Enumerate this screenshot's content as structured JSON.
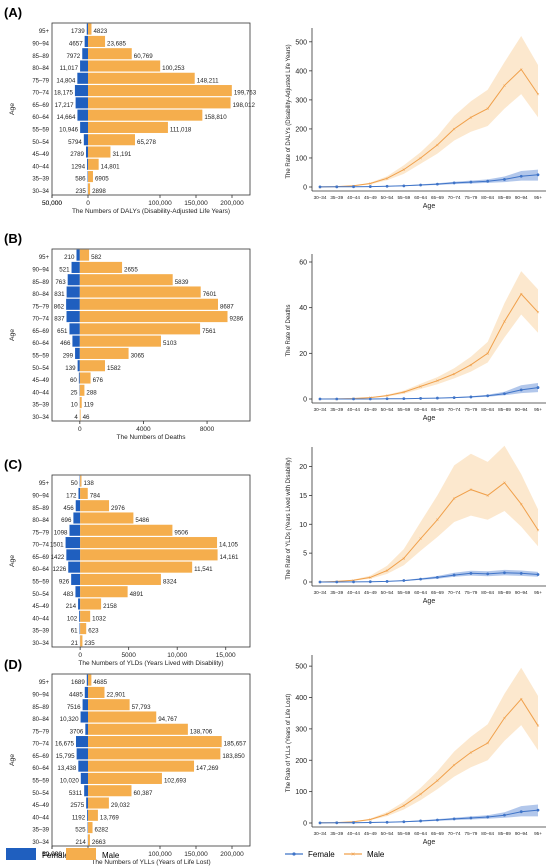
{
  "age_groups": [
    "95+",
    "90–94",
    "85–89",
    "80–84",
    "75–79",
    "70–74",
    "65–69",
    "60–64",
    "55–59",
    "50–54",
    "45–49",
    "40–44",
    "35–39",
    "30–34"
  ],
  "line_ticks": [
    "30–34",
    "35–39",
    "40–44",
    "45–49",
    "50–54",
    "55–59",
    "60–64",
    "65–69",
    "70–74",
    "75–79",
    "80–84",
    "85–89",
    "90–94",
    "95+"
  ],
  "colors": {
    "female": "#1f5fbf",
    "male": "#f5ae4d",
    "female_line": "#3f74c8",
    "male_line": "#f0a04b",
    "female_band": "#9fb9e6",
    "male_band": "#fbe0bd"
  },
  "legend": {
    "female_label": "Female",
    "male_label": "Male"
  },
  "chart_data": [
    {
      "type": "bar",
      "panel": "(A)",
      "xlabel": "The Numbers of DALYs (Disability-Adjusted Life Years)",
      "ylabel": "Age",
      "xticks": [
        "50,000",
        "0",
        "50,000",
        "100,000",
        "150,000",
        "200,000"
      ],
      "xlim": [
        -50000,
        225000
      ],
      "series": [
        {
          "name": "Female",
          "values": [
            1739,
            4657,
            7972,
            11017,
            14804,
            18175,
            17217,
            14664,
            10946,
            5794,
            2789,
            1294,
            586,
            235
          ],
          "labels": [
            "1739",
            "4657",
            "7972",
            "11,017",
            "14,804",
            "18,175",
            "17,217",
            "14,664",
            "10,946",
            "5794",
            "2789",
            "1294",
            "586",
            "235"
          ]
        },
        {
          "name": "Male",
          "values": [
            4823,
            23685,
            60769,
            100253,
            148211,
            199763,
            198012,
            158810,
            111018,
            65278,
            31191,
            14801,
            6905,
            2898
          ],
          "labels": [
            "4823",
            "23,685",
            "60,769",
            "100,253",
            "148,211",
            "199,763",
            "198,012",
            "158,810",
            "111,018",
            "65,278",
            "31,191",
            "14,801",
            "6905",
            "2898"
          ]
        }
      ]
    },
    {
      "type": "bar",
      "panel": "(B)",
      "xlabel": "The Numbers of Deaths",
      "ylabel": "Age",
      "xticks": [
        "0",
        "4000",
        "8000"
      ],
      "xlim": [
        -1750,
        10700
      ],
      "series": [
        {
          "name": "Female",
          "values": [
            210,
            521,
            763,
            831,
            862,
            837,
            651,
            466,
            299,
            139,
            60,
            25,
            10,
            4
          ],
          "labels": [
            "210",
            "521",
            "763",
            "831",
            "862",
            "837",
            "651",
            "466",
            "299",
            "139",
            "60",
            "25",
            "10",
            "4"
          ]
        },
        {
          "name": "Male",
          "values": [
            582,
            2655,
            5839,
            7601,
            8687,
            9286,
            7561,
            5103,
            3065,
            1582,
            676,
            288,
            119,
            46
          ],
          "labels": [
            "582",
            "2655",
            "5839",
            "7601",
            "8687",
            "9286",
            "7561",
            "5103",
            "3065",
            "1582",
            "676",
            "288",
            "119",
            "46"
          ]
        }
      ]
    },
    {
      "type": "bar",
      "panel": "(C)",
      "xlabel": "The Numbers of YLDs (Years Lived with Disability)",
      "ylabel": "Age",
      "xticks": [
        "0",
        "5000",
        "10,000",
        "15,000"
      ],
      "xlim": [
        -2900,
        17500
      ],
      "series": [
        {
          "name": "Female",
          "values": [
            50,
            172,
            456,
            696,
            1098,
            1501,
            1422,
            1226,
            926,
            483,
            214,
            102,
            61,
            21
          ],
          "labels": [
            "50",
            "172",
            "456",
            "696",
            "1098",
            "1501",
            "1422",
            "1226",
            "926",
            "483",
            "214",
            "102",
            "61",
            "21"
          ]
        },
        {
          "name": "Male",
          "values": [
            138,
            784,
            2976,
            5486,
            9506,
            14105,
            14161,
            11541,
            8324,
            4891,
            2158,
            1032,
            623,
            235
          ],
          "labels": [
            "138",
            "784",
            "2976",
            "5486",
            "9506",
            "14,105",
            "14,161",
            "11,541",
            "8324",
            "4891",
            "2158",
            "1032",
            "623",
            "235"
          ]
        }
      ]
    },
    {
      "type": "bar",
      "panel": "(D)",
      "xlabel": "The Numbers of YLLs (Years of Life Lost)",
      "ylabel": "Age",
      "xticks": [
        "50,000",
        "0",
        "50,000",
        "100,000",
        "150,000",
        "200,000"
      ],
      "xlim": [
        -50000,
        225000
      ],
      "series": [
        {
          "name": "Female",
          "values": [
            1689,
            4485,
            7516,
            10320,
            3706,
            16675,
            15795,
            13438,
            10020,
            5311,
            2575,
            1192,
            525,
            214
          ],
          "labels": [
            "1689",
            "4485",
            "7516",
            "10,320",
            "3706",
            "16,675",
            "15,795",
            "13,438",
            "10,020",
            "5311",
            "2575",
            "1192",
            "525",
            "214"
          ]
        },
        {
          "name": "Male",
          "values": [
            4685,
            22901,
            57793,
            94767,
            138706,
            185657,
            183850,
            147269,
            102693,
            60387,
            29032,
            13769,
            6282,
            2663
          ],
          "labels": [
            "4685",
            "22,901",
            "57,793",
            "94,767",
            "138,706",
            "185,657",
            "183,850",
            "147,269",
            "102,693",
            "60,387",
            "29,032",
            "13,769",
            "6282",
            "2663"
          ]
        }
      ]
    },
    {
      "type": "line",
      "panel": "",
      "xlabel": "Age",
      "ylabel": "The Rate of DALYs (Disability-Adjusted Life Years)",
      "ylim": [
        0,
        520
      ],
      "yticks": [
        0,
        100,
        200,
        300,
        400,
        500
      ],
      "series": [
        {
          "name": "Female",
          "values": [
            0.3,
            0.6,
            1,
            1.5,
            2.5,
            4,
            7,
            10,
            14,
            17,
            20,
            26,
            37,
            42
          ],
          "lower": [
            0.2,
            0.4,
            0.7,
            1,
            1.8,
            2.8,
            5,
            7,
            10,
            12,
            14,
            17,
            22,
            22
          ],
          "upper": [
            0.4,
            0.8,
            1.3,
            2,
            3.2,
            5.2,
            9,
            13,
            18,
            22,
            26,
            36,
            55,
            60
          ]
        },
        {
          "name": "Male",
          "values": [
            0.5,
            1.5,
            4,
            12,
            30,
            60,
            100,
            145,
            200,
            240,
            270,
            350,
            405,
            320
          ],
          "lower": [
            0.3,
            1,
            3,
            9,
            23,
            45,
            80,
            115,
            160,
            190,
            210,
            270,
            320,
            240
          ],
          "upper": [
            0.7,
            2,
            5,
            15,
            37,
            75,
            120,
            175,
            245,
            295,
            335,
            430,
            520,
            420
          ]
        }
      ]
    },
    {
      "type": "line",
      "panel": "",
      "xlabel": "Age",
      "ylabel": "The Rate of Deaths",
      "ylim": [
        0,
        60
      ],
      "yticks": [
        0,
        20,
        40,
        60
      ],
      "series": [
        {
          "name": "Female",
          "values": [
            0,
            0,
            0,
            0,
            0.1,
            0.15,
            0.25,
            0.4,
            0.6,
            0.9,
            1.4,
            2.3,
            4,
            5
          ],
          "lower": [
            0,
            0,
            0,
            0,
            0.08,
            0.1,
            0.18,
            0.3,
            0.45,
            0.65,
            1,
            1.6,
            2.6,
            3
          ],
          "upper": [
            0,
            0,
            0.05,
            0.1,
            0.14,
            0.2,
            0.33,
            0.52,
            0.78,
            1.2,
            1.9,
            3.2,
            6,
            7
          ]
        },
        {
          "name": "Male",
          "values": [
            0,
            0.05,
            0.2,
            0.6,
            1.5,
            3,
            5.5,
            8,
            11,
            15,
            20,
            34,
            46,
            38
          ],
          "lower": [
            0,
            0.03,
            0.15,
            0.45,
            1.1,
            2.3,
            4.4,
            6.5,
            9,
            12,
            16,
            27,
            37,
            29
          ],
          "upper": [
            0,
            0.07,
            0.25,
            0.75,
            1.9,
            3.7,
            6.7,
            9.6,
            13.5,
            18.5,
            25,
            42,
            56,
            48
          ]
        }
      ]
    },
    {
      "type": "line",
      "panel": "",
      "xlabel": "Age",
      "ylabel": "The Rate of YLDs (Years Lived with Disability)",
      "ylim": [
        0,
        22
      ],
      "yticks": [
        0,
        5,
        10,
        15,
        20
      ],
      "series": [
        {
          "name": "Female",
          "values": [
            0,
            0,
            0.02,
            0.05,
            0.1,
            0.25,
            0.5,
            0.8,
            1.2,
            1.5,
            1.4,
            1.6,
            1.5,
            1.3
          ],
          "lower": [
            0,
            0,
            0.01,
            0.03,
            0.07,
            0.18,
            0.36,
            0.58,
            0.9,
            1.1,
            1,
            1.15,
            1.05,
            0.9
          ],
          "upper": [
            0,
            0,
            0.03,
            0.07,
            0.14,
            0.33,
            0.65,
            1.04,
            1.6,
            1.95,
            1.85,
            2.1,
            2,
            1.75
          ]
        },
        {
          "name": "Male",
          "values": [
            0,
            0.1,
            0.3,
            0.8,
            2,
            4.1,
            7.5,
            10.8,
            14.5,
            16,
            15,
            17.2,
            13.5,
            9
          ],
          "lower": [
            0,
            0.06,
            0.2,
            0.55,
            1.4,
            2.9,
            5.4,
            7.8,
            10.4,
            11.5,
            10.8,
            12.3,
            9.6,
            6.2
          ],
          "upper": [
            0,
            0.14,
            0.42,
            1.1,
            2.8,
            5.7,
            10.4,
            15,
            20.2,
            22.2,
            20.8,
            23.6,
            18.7,
            12.6
          ]
        }
      ]
    },
    {
      "type": "line",
      "panel": "",
      "xlabel": "Age",
      "ylabel": "The Rate of YLLs (Years of Life Lost)",
      "ylim": [
        0,
        510
      ],
      "yticks": [
        0,
        100,
        200,
        300,
        400,
        500
      ],
      "series": [
        {
          "name": "Female",
          "values": [
            0.3,
            0.6,
            1,
            1.5,
            2.5,
            4,
            6.5,
            9.5,
            13,
            16,
            19,
            25,
            36,
            41
          ],
          "lower": [
            0.2,
            0.4,
            0.7,
            1,
            1.8,
            2.8,
            4.6,
            6.7,
            9.2,
            11.2,
            13.3,
            16.5,
            21,
            21
          ],
          "upper": [
            0.4,
            0.8,
            1.3,
            2,
            3.2,
            5.2,
            8.5,
            12.5,
            17,
            21,
            25,
            34,
            54,
            59
          ]
        },
        {
          "name": "Male",
          "values": [
            0.5,
            1.4,
            3.8,
            11,
            28,
            55,
            92,
            135,
            185,
            225,
            255,
            335,
            395,
            310
          ],
          "lower": [
            0.3,
            1,
            2.9,
            8.5,
            22,
            43,
            73,
            108,
            148,
            178,
            200,
            262,
            312,
            232
          ],
          "upper": [
            0.7,
            1.9,
            4.8,
            14,
            35,
            68,
            112,
            165,
            228,
            275,
            315,
            412,
            495,
            405
          ]
        }
      ]
    }
  ]
}
